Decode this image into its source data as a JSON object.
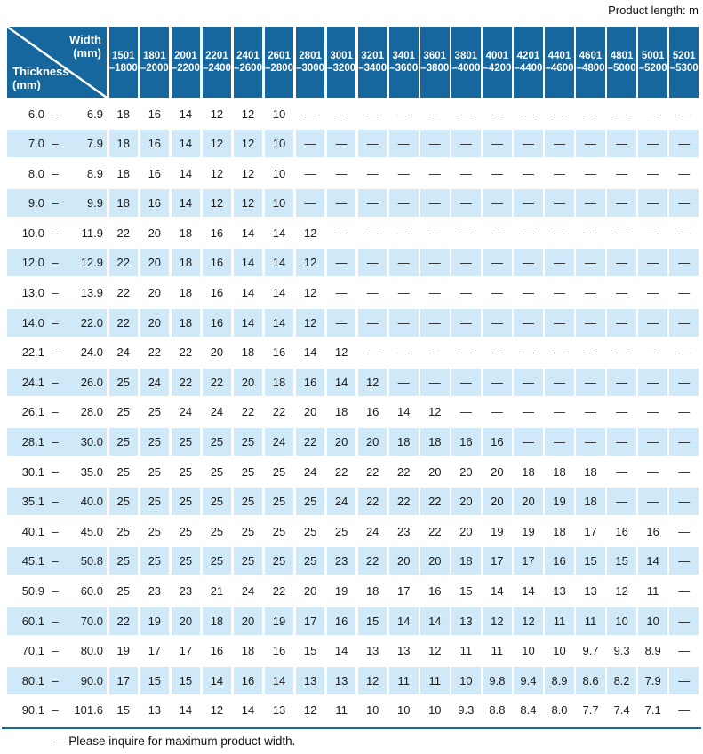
{
  "page": {
    "top_note": "Product length: m",
    "footnote": "— Please inquire for maximum product width."
  },
  "colors": {
    "header_bg": "#15679e",
    "row_alt_bg": "#cfe9f8",
    "rule": "#15679e",
    "header_text": "#ffffff",
    "body_text": "#1b1b1b"
  },
  "table": {
    "corner": {
      "top_label": "Width\n(mm)",
      "bottom_label": "Thickness\n(mm)"
    },
    "range_dash": "–",
    "no_value_symbol": "—",
    "columns": [
      {
        "from": "1501",
        "to": "–1800"
      },
      {
        "from": "1801",
        "to": "–2000"
      },
      {
        "from": "2001",
        "to": "–2200"
      },
      {
        "from": "2201",
        "to": "–2400"
      },
      {
        "from": "2401",
        "to": "–2600"
      },
      {
        "from": "2601",
        "to": "–2800"
      },
      {
        "from": "2801",
        "to": "–3000"
      },
      {
        "from": "3001",
        "to": "–3200"
      },
      {
        "from": "3201",
        "to": "–3400"
      },
      {
        "from": "3401",
        "to": "–3600"
      },
      {
        "from": "3601",
        "to": "–3800"
      },
      {
        "from": "3801",
        "to": "–4000"
      },
      {
        "from": "4001",
        "to": "–4200"
      },
      {
        "from": "4201",
        "to": "–4400"
      },
      {
        "from": "4401",
        "to": "–4600"
      },
      {
        "from": "4601",
        "to": "–4800"
      },
      {
        "from": "4801",
        "to": "–5000"
      },
      {
        "from": "5001",
        "to": "–5200"
      },
      {
        "from": "5201",
        "to": "–5300"
      }
    ],
    "rows": [
      {
        "min": "6.0",
        "max": "6.9",
        "values": [
          "18",
          "16",
          "14",
          "12",
          "12",
          "10",
          "—",
          "—",
          "—",
          "—",
          "—",
          "—",
          "—",
          "—",
          "—",
          "—",
          "—",
          "—",
          "—"
        ]
      },
      {
        "min": "7.0",
        "max": "7.9",
        "values": [
          "18",
          "16",
          "14",
          "12",
          "12",
          "10",
          "—",
          "—",
          "—",
          "—",
          "—",
          "—",
          "—",
          "—",
          "—",
          "—",
          "—",
          "—",
          "—"
        ]
      },
      {
        "min": "8.0",
        "max": "8.9",
        "values": [
          "18",
          "16",
          "14",
          "12",
          "12",
          "10",
          "—",
          "—",
          "—",
          "—",
          "—",
          "—",
          "—",
          "—",
          "—",
          "—",
          "—",
          "—",
          "—"
        ]
      },
      {
        "min": "9.0",
        "max": "9.9",
        "values": [
          "18",
          "16",
          "14",
          "12",
          "12",
          "10",
          "—",
          "—",
          "—",
          "—",
          "—",
          "—",
          "—",
          "—",
          "—",
          "—",
          "—",
          "—",
          "—"
        ]
      },
      {
        "min": "10.0",
        "max": "11.9",
        "values": [
          "22",
          "20",
          "18",
          "16",
          "14",
          "14",
          "12",
          "—",
          "—",
          "—",
          "—",
          "—",
          "—",
          "—",
          "—",
          "—",
          "—",
          "—",
          "—"
        ]
      },
      {
        "min": "12.0",
        "max": "12.9",
        "values": [
          "22",
          "20",
          "18",
          "16",
          "14",
          "14",
          "12",
          "—",
          "—",
          "—",
          "—",
          "—",
          "—",
          "—",
          "—",
          "—",
          "—",
          "—",
          "—"
        ]
      },
      {
        "min": "13.0",
        "max": "13.9",
        "values": [
          "22",
          "20",
          "18",
          "16",
          "14",
          "14",
          "12",
          "—",
          "—",
          "—",
          "—",
          "—",
          "—",
          "—",
          "—",
          "—",
          "—",
          "—",
          "—"
        ]
      },
      {
        "min": "14.0",
        "max": "22.0",
        "values": [
          "22",
          "20",
          "18",
          "16",
          "14",
          "14",
          "12",
          "—",
          "—",
          "—",
          "—",
          "—",
          "—",
          "—",
          "—",
          "—",
          "—",
          "—",
          "—"
        ]
      },
      {
        "min": "22.1",
        "max": "24.0",
        "values": [
          "24",
          "22",
          "22",
          "20",
          "18",
          "16",
          "14",
          "12",
          "—",
          "—",
          "—",
          "—",
          "—",
          "—",
          "—",
          "—",
          "—",
          "—",
          "—"
        ]
      },
      {
        "min": "24.1",
        "max": "26.0",
        "values": [
          "25",
          "24",
          "22",
          "22",
          "20",
          "18",
          "16",
          "14",
          "12",
          "—",
          "—",
          "—",
          "—",
          "—",
          "—",
          "—",
          "—",
          "—",
          "—"
        ]
      },
      {
        "min": "26.1",
        "max": "28.0",
        "values": [
          "25",
          "25",
          "24",
          "24",
          "22",
          "22",
          "20",
          "18",
          "16",
          "14",
          "12",
          "—",
          "—",
          "—",
          "—",
          "—",
          "—",
          "—",
          "—"
        ]
      },
      {
        "min": "28.1",
        "max": "30.0",
        "values": [
          "25",
          "25",
          "25",
          "25",
          "25",
          "24",
          "22",
          "20",
          "20",
          "18",
          "18",
          "16",
          "16",
          "—",
          "—",
          "—",
          "—",
          "—",
          "—"
        ]
      },
      {
        "min": "30.1",
        "max": "35.0",
        "values": [
          "25",
          "25",
          "25",
          "25",
          "25",
          "25",
          "24",
          "22",
          "22",
          "22",
          "20",
          "20",
          "20",
          "18",
          "18",
          "18",
          "—",
          "—",
          "—"
        ]
      },
      {
        "min": "35.1",
        "max": "40.0",
        "values": [
          "25",
          "25",
          "25",
          "25",
          "25",
          "25",
          "25",
          "24",
          "22",
          "22",
          "22",
          "20",
          "20",
          "20",
          "19",
          "18",
          "—",
          "—",
          "—"
        ]
      },
      {
        "min": "40.1",
        "max": "45.0",
        "values": [
          "25",
          "25",
          "25",
          "25",
          "25",
          "25",
          "25",
          "25",
          "24",
          "23",
          "22",
          "20",
          "19",
          "19",
          "18",
          "17",
          "16",
          "16",
          "—"
        ]
      },
      {
        "min": "45.1",
        "max": "50.8",
        "values": [
          "25",
          "25",
          "25",
          "25",
          "25",
          "25",
          "25",
          "23",
          "22",
          "20",
          "20",
          "18",
          "17",
          "17",
          "16",
          "15",
          "15",
          "14",
          "—"
        ]
      },
      {
        "min": "50.9",
        "max": "60.0",
        "values": [
          "25",
          "23",
          "23",
          "21",
          "24",
          "22",
          "20",
          "19",
          "18",
          "17",
          "16",
          "15",
          "14",
          "14",
          "13",
          "13",
          "12",
          "11",
          "—"
        ]
      },
      {
        "min": "60.1",
        "max": "70.0",
        "values": [
          "22",
          "19",
          "20",
          "18",
          "20",
          "19",
          "17",
          "16",
          "15",
          "14",
          "14",
          "13",
          "12",
          "12",
          "11",
          "11",
          "10",
          "10",
          "—"
        ]
      },
      {
        "min": "70.1",
        "max": "80.0",
        "values": [
          "19",
          "17",
          "17",
          "16",
          "18",
          "16",
          "15",
          "14",
          "13",
          "13",
          "12",
          "11",
          "11",
          "10",
          "10",
          "9.7",
          "9.3",
          "8.9",
          "—"
        ]
      },
      {
        "min": "80.1",
        "max": "90.0",
        "values": [
          "17",
          "15",
          "15",
          "14",
          "16",
          "14",
          "13",
          "13",
          "12",
          "11",
          "11",
          "10",
          "9.8",
          "9.4",
          "8.9",
          "8.6",
          "8.2",
          "7.9",
          "—"
        ]
      },
      {
        "min": "90.1",
        "max": "101.6",
        "values": [
          "15",
          "13",
          "14",
          "12",
          "14",
          "13",
          "12",
          "11",
          "10",
          "10",
          "10",
          "9.3",
          "8.8",
          "8.4",
          "8.0",
          "7.7",
          "7.4",
          "7.1",
          "—"
        ]
      }
    ]
  }
}
